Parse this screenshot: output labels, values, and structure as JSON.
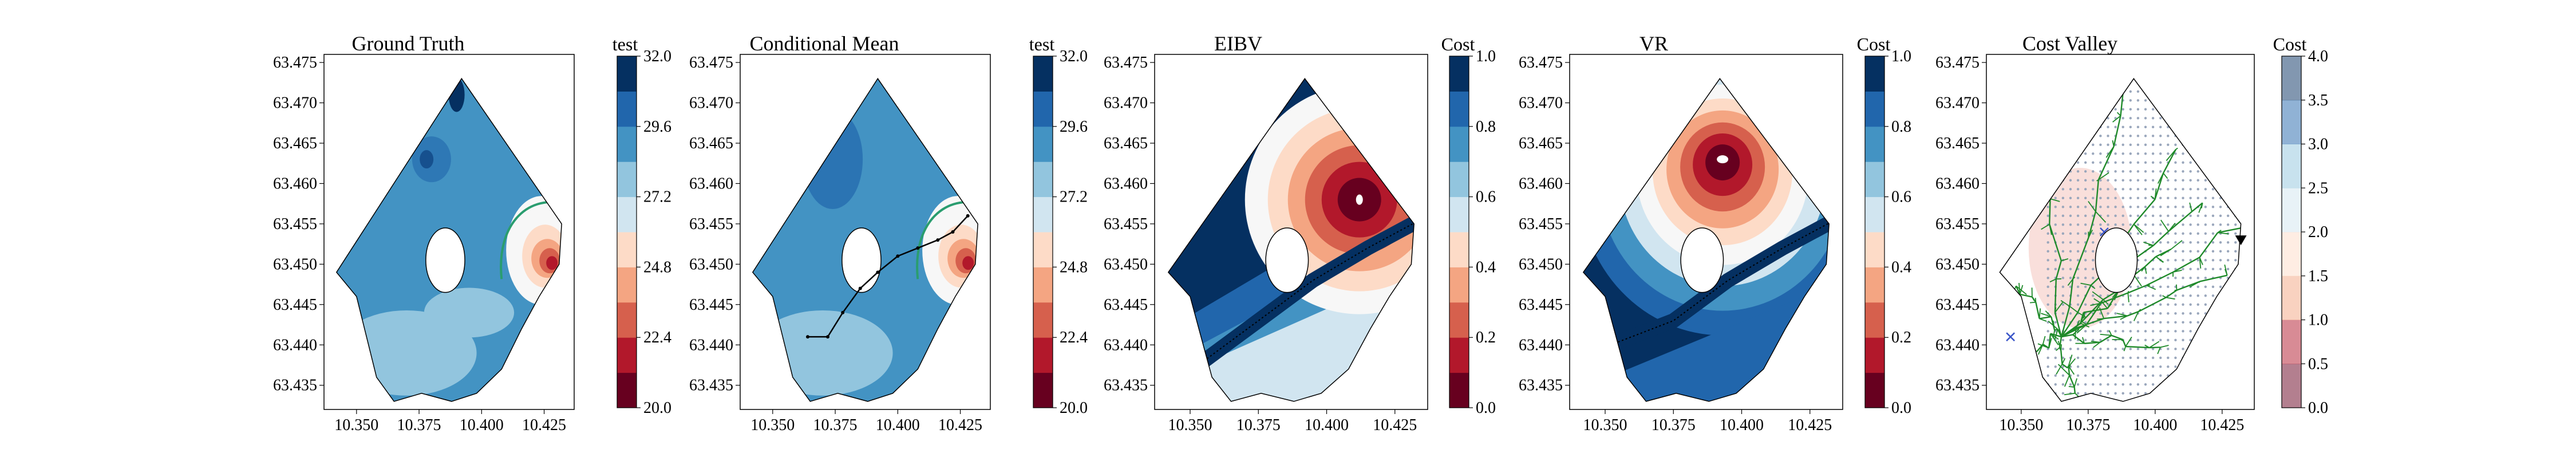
{
  "colors": {
    "rdbu": [
      "#67001f",
      "#b2182b",
      "#d6604d",
      "#f4a582",
      "#fddbc7",
      "#f7f7f7",
      "#d1e5f0",
      "#92c5de",
      "#4393c3",
      "#2166ac",
      "#053061"
    ],
    "truth_contour": "#2a9d6f",
    "path": "#000000",
    "tree": "#1f8a2a",
    "polygon": "#000000"
  },
  "chart_data": [
    {
      "type": "heatmap",
      "title": "Ground Truth",
      "x_ticks": [
        "10.350",
        "10.375",
        "10.400",
        "10.425"
      ],
      "y_ticks": [
        "63.475",
        "63.470",
        "63.465",
        "63.460",
        "63.455",
        "63.450",
        "63.445",
        "63.440",
        "63.435"
      ],
      "xlim": [
        10.337,
        10.437
      ],
      "ylim": [
        63.432,
        63.476
      ],
      "colorbar": {
        "title": "test",
        "range": [
          20.0,
          32.0
        ],
        "ticks": [
          "32.0",
          "29.6",
          "27.2",
          "24.8",
          "22.4",
          "20.0"
        ],
        "levels": 10,
        "reversed_scheme": false
      },
      "field": "salinity-like field: mostly 27–30 with low-value hotspot near (10.422, 63.451)",
      "overlays": [
        "threshold contour"
      ]
    },
    {
      "type": "heatmap",
      "title": "Conditional Mean",
      "x_ticks": [
        "10.350",
        "10.375",
        "10.400",
        "10.425"
      ],
      "y_ticks": [
        "63.475",
        "63.470",
        "63.465",
        "63.460",
        "63.455",
        "63.450",
        "63.445",
        "63.440",
        "63.435"
      ],
      "xlim": [
        10.337,
        10.437
      ],
      "ylim": [
        63.432,
        63.476
      ],
      "colorbar": {
        "title": "test",
        "range": [
          20.0,
          32.0
        ],
        "ticks": [
          "32.0",
          "29.6",
          "27.2",
          "24.8",
          "22.4",
          "20.0"
        ],
        "levels": 10,
        "reversed_scheme": false
      },
      "path": [
        [
          10.364,
          63.441
        ],
        [
          10.372,
          63.441
        ],
        [
          10.378,
          63.444
        ],
        [
          10.385,
          63.447
        ],
        [
          10.392,
          63.449
        ],
        [
          10.4,
          63.451
        ],
        [
          10.408,
          63.452
        ],
        [
          10.416,
          63.453
        ],
        [
          10.422,
          63.454
        ],
        [
          10.428,
          63.456
        ]
      ],
      "overlays": [
        "threshold contour",
        "sampling path"
      ]
    },
    {
      "type": "heatmap",
      "title": "EIBV",
      "x_ticks": [
        "10.350",
        "10.375",
        "10.400",
        "10.425"
      ],
      "y_ticks": [
        "63.475",
        "63.470",
        "63.465",
        "63.460",
        "63.455",
        "63.450",
        "63.445",
        "63.440",
        "63.435"
      ],
      "xlim": [
        10.337,
        10.437
      ],
      "ylim": [
        63.432,
        63.476
      ],
      "colorbar": {
        "title": "Cost",
        "range": [
          0.0,
          1.0
        ],
        "ticks": [
          "1.0",
          "0.8",
          "0.6",
          "0.4",
          "0.2",
          "0.0"
        ],
        "levels": 10,
        "reversed_scheme": false
      },
      "hotspot": [
        10.412,
        63.458
      ],
      "overlays": [
        "sampled path band"
      ]
    },
    {
      "type": "heatmap",
      "title": "VR",
      "x_ticks": [
        "10.350",
        "10.375",
        "10.400",
        "10.425"
      ],
      "y_ticks": [
        "63.475",
        "63.470",
        "63.465",
        "63.460",
        "63.455",
        "63.450",
        "63.445",
        "63.440",
        "63.435"
      ],
      "xlim": [
        10.337,
        10.437
      ],
      "ylim": [
        63.432,
        63.476
      ],
      "colorbar": {
        "title": "Cost",
        "range": [
          0.0,
          1.0
        ],
        "ticks": [
          "1.0",
          "0.8",
          "0.6",
          "0.4",
          "0.2",
          "0.0"
        ],
        "levels": 10,
        "reversed_scheme": false
      },
      "hotspot": [
        10.393,
        63.463
      ],
      "overlays": [
        "sampled path band"
      ]
    },
    {
      "type": "heatmap",
      "title": "Cost Valley",
      "x_ticks": [
        "10.350",
        "10.375",
        "10.400",
        "10.425"
      ],
      "y_ticks": [
        "63.475",
        "63.470",
        "63.465",
        "63.460",
        "63.455",
        "63.450",
        "63.445",
        "63.440",
        "63.435"
      ],
      "xlim": [
        10.337,
        10.437
      ],
      "ylim": [
        63.432,
        63.476
      ],
      "colorbar": {
        "title": "Cost",
        "range": [
          0.0,
          4.0
        ],
        "ticks": [
          "4.0",
          "3.5",
          "3.0",
          "2.5",
          "2.0",
          "1.5",
          "1.0",
          "0.5",
          "0.0"
        ],
        "levels": 8,
        "reversed_scheme": false,
        "faded": true
      },
      "tree_root": [
        10.365,
        63.441
      ],
      "markers": [
        {
          "kind": "triangle-down",
          "at": [
            10.432,
            63.453
          ]
        },
        {
          "kind": "cross",
          "at": [
            10.381,
            63.454
          ]
        },
        {
          "kind": "cross",
          "at": [
            10.346,
            63.441
          ]
        }
      ],
      "overlays": [
        "RRT tree",
        "grid points"
      ]
    }
  ]
}
